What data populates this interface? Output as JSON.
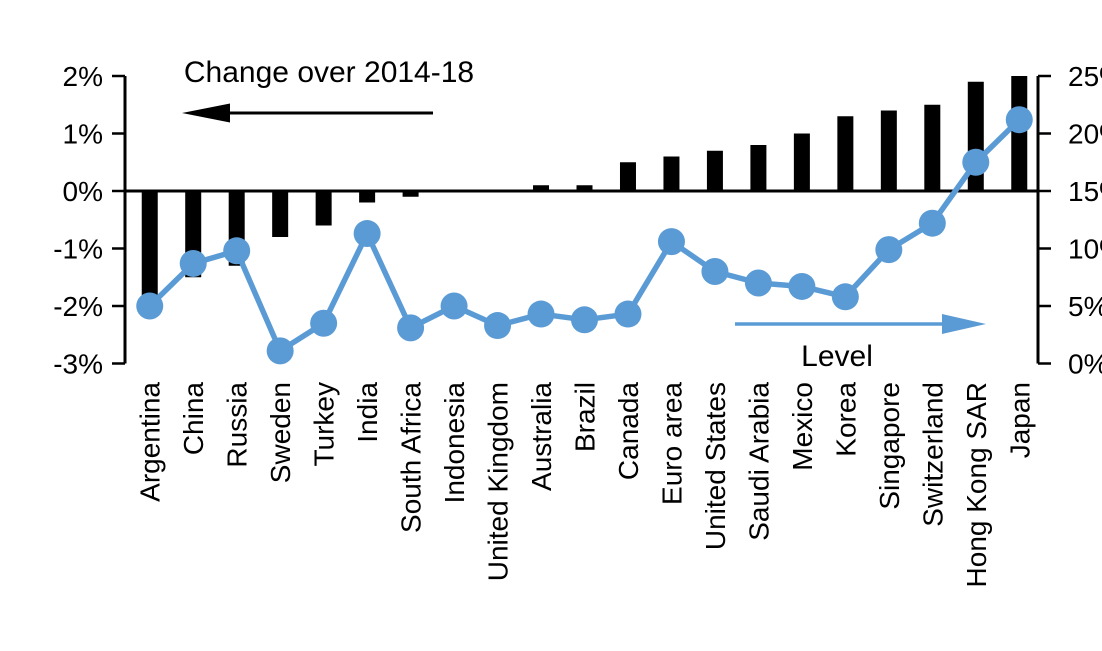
{
  "chart_data": {
    "type": "combo_bar_line",
    "title": "Change over 2014-18",
    "background": "#ffffff",
    "grid": false,
    "categories": [
      "Argentina",
      "China",
      "Russia",
      "Sweden",
      "Turkey",
      "India",
      "South Africa",
      "Indonesia",
      "United Kingdom",
      "Australia",
      "Brazil",
      "Canada",
      "Euro area",
      "United States",
      "Saudi Arabia",
      "Mexico",
      "Korea",
      "Singapore",
      "Switzerland",
      "Hong Kong SAR",
      "Japan"
    ],
    "series": [
      {
        "name": "Change over 2014-18",
        "type": "bar",
        "axis": "left",
        "color": "#000000",
        "values": [
          -2.0,
          -1.5,
          -1.3,
          -0.8,
          -0.6,
          -0.2,
          -0.1,
          0.0,
          0.0,
          0.1,
          0.1,
          0.5,
          0.6,
          0.7,
          0.8,
          1.0,
          1.3,
          1.4,
          1.5,
          1.9,
          2.0
        ]
      },
      {
        "name": "Level",
        "type": "line",
        "axis": "right",
        "color": "#5B9BD5",
        "values": [
          5.0,
          8.7,
          9.8,
          1.1,
          3.5,
          11.3,
          3.1,
          5.0,
          3.3,
          4.3,
          3.8,
          4.3,
          10.6,
          8.0,
          7.0,
          6.7,
          5.8,
          9.9,
          12.2,
          17.5,
          21.2
        ]
      }
    ],
    "left_axis": {
      "range": [
        -3,
        2
      ],
      "tick_step": 1,
      "tick_labels": [
        "2%",
        "1%",
        "0%",
        "-1%",
        "-2%",
        "-3%"
      ]
    },
    "right_axis": {
      "range": [
        0,
        25
      ],
      "tick_step": 5,
      "tick_labels": [
        "25%",
        "20%",
        "15%",
        "10%",
        "5%",
        "0%"
      ]
    },
    "annotations": {
      "left_series_caption": "Change over 2014-18",
      "left_series_arrow_direction": "left",
      "right_series_caption": "Level",
      "right_series_arrow_direction": "right"
    }
  }
}
